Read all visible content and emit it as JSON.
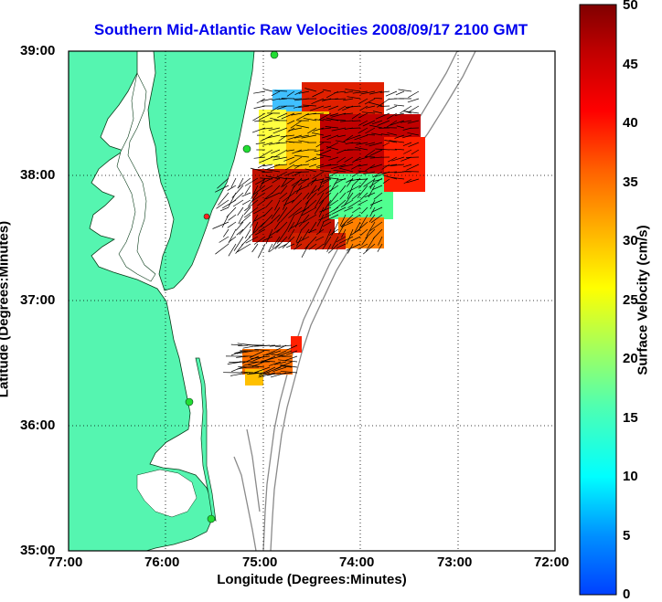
{
  "title": "Southern Mid-Atlantic Raw Velocities 2008/09/17 2100 GMT",
  "xlabel": "Longitude (Degrees:Minutes)",
  "ylabel": "Latitude (Degrees:Minutes)",
  "colorbar": {
    "label": "Surface Velocity (cm/s)",
    "ticks": [
      "0",
      "5",
      "10",
      "15",
      "20",
      "25",
      "30",
      "35",
      "40",
      "45",
      "50"
    ],
    "range": [
      0,
      50
    ]
  },
  "x_ticks": [
    "77:00",
    "76:00",
    "75:00",
    "74:00",
    "73:00",
    "72:00"
  ],
  "y_ticks": [
    "39:00",
    "38:00",
    "37:00",
    "36:00",
    "35:00"
  ],
  "colors": {
    "land": "#55f5b0",
    "water": "#ffffff",
    "title": "#0000ee",
    "bathymetry": "#8a8a8a"
  },
  "map": {
    "lon_range": [
      -77,
      -72
    ],
    "lat_range": [
      35,
      39
    ]
  }
}
